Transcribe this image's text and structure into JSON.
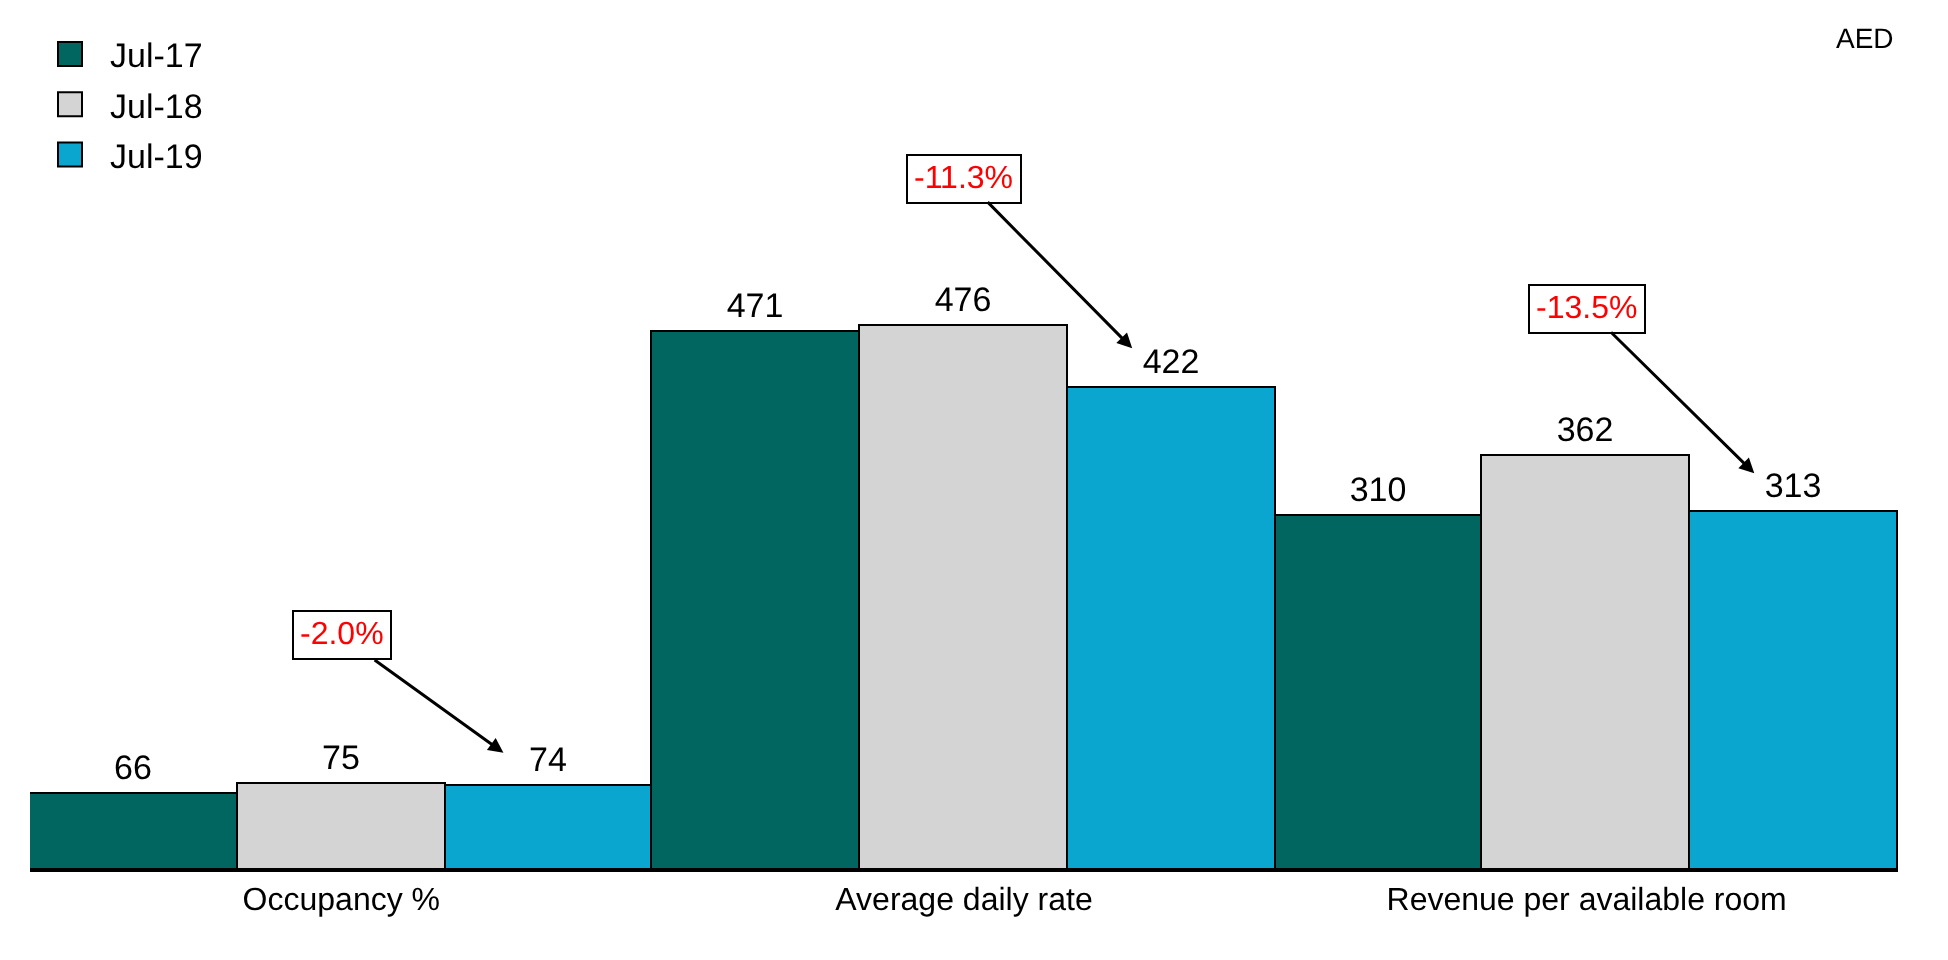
{
  "chart_data": {
    "type": "bar",
    "categories": [
      "Occupancy %",
      "Average daily rate",
      "Revenue per available room"
    ],
    "series": [
      {
        "name": "Jul-17",
        "color": "#00665f",
        "values": [
          66,
          471,
          310
        ]
      },
      {
        "name": "Jul-18",
        "color": "#d4d4d4",
        "values": [
          75,
          476,
          362
        ]
      },
      {
        "name": "Jul-19",
        "color": "#0aa6cf",
        "values": [
          74,
          422,
          313
        ]
      }
    ],
    "data_labels": true,
    "legend": "top left",
    "annotations": [
      "-2.0%",
      "-11.3%",
      "-13.5%",
      "AED"
    ]
  }
}
